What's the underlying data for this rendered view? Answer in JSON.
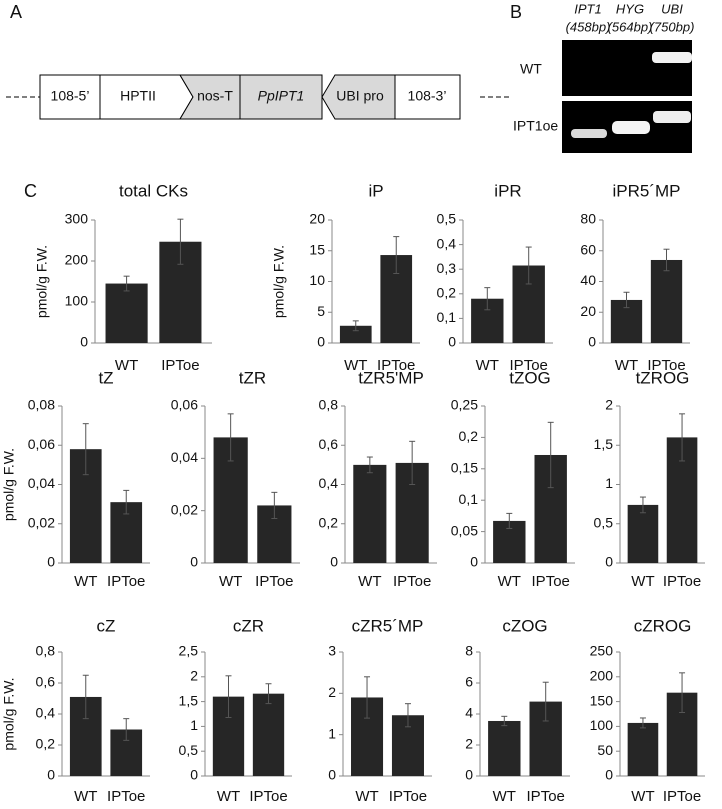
{
  "panel_a": {
    "label": "A",
    "construct": [
      "108-5’",
      "HPTII",
      "nos-T",
      "PpIPT1",
      "UBI pro",
      "108-3’"
    ]
  },
  "panel_b": {
    "label": "B",
    "lanes": [
      {
        "gene": "IPT1",
        "size": "(458bp)"
      },
      {
        "gene": "HYG",
        "size": "(564bp)"
      },
      {
        "gene": "UBI",
        "size": "(750bp)"
      }
    ],
    "rows": [
      "WT",
      "IPT1oe"
    ]
  },
  "panel_c": {
    "label": "C"
  },
  "chart_data": [
    {
      "type": "bar",
      "title": "total CKs",
      "ylabel": "pmol/g F.W.",
      "categories": [
        "WT",
        "IPToe"
      ],
      "values": [
        145,
        247
      ],
      "errors": [
        18,
        55
      ],
      "color": "#262626",
      "ylim": [
        0,
        300
      ],
      "yticks": [
        0,
        100,
        200,
        300
      ]
    },
    {
      "type": "bar",
      "title": "iP",
      "ylabel": "pmol/g F.W.",
      "categories": [
        "WT",
        "IPToe"
      ],
      "values": [
        2.8,
        14.3
      ],
      "errors": [
        0.8,
        3
      ],
      "color": "#262626",
      "ylim": [
        0,
        20
      ],
      "yticks": [
        0,
        5,
        10,
        15,
        20
      ]
    },
    {
      "type": "bar",
      "title": "iPR",
      "categories": [
        "WT",
        "IPToe"
      ],
      "values": [
        0.18,
        0.315
      ],
      "errors": [
        0.045,
        0.075
      ],
      "color": "#262626",
      "ylim": [
        0,
        0.5
      ],
      "yticks": [
        0,
        {
          "value": 0.1,
          "label": "0,1"
        },
        {
          "value": 0.2,
          "label": "0,2"
        },
        {
          "value": 0.3,
          "label": "0,3"
        },
        {
          "value": 0.4,
          "label": "0,4"
        },
        {
          "value": 0.5,
          "label": "0,5"
        }
      ]
    },
    {
      "type": "bar",
      "title": "iPR5´MP",
      "categories": [
        "WT",
        "IPToe"
      ],
      "values": [
        28,
        54
      ],
      "errors": [
        5,
        7
      ],
      "color": "#262626",
      "ylim": [
        0,
        80
      ],
      "yticks": [
        0,
        20,
        40,
        60,
        80
      ]
    },
    {
      "type": "bar",
      "title": "tZ",
      "ylabel": "pmol/g F.W.",
      "categories": [
        "WT",
        "IPToe"
      ],
      "values": [
        0.058,
        0.031
      ],
      "errors": [
        0.013,
        0.006
      ],
      "color": "#262626",
      "ylim": [
        0,
        0.08
      ],
      "yticks": [
        0,
        {
          "value": 0.02,
          "label": "0,02"
        },
        {
          "value": 0.04,
          "label": "0,04"
        },
        {
          "value": 0.06,
          "label": "0,06"
        },
        {
          "value": 0.08,
          "label": "0,08"
        }
      ]
    },
    {
      "type": "bar",
      "title": "tZR",
      "categories": [
        "WT",
        "IPToe"
      ],
      "values": [
        0.048,
        0.022
      ],
      "errors": [
        0.009,
        0.005
      ],
      "color": "#262626",
      "ylim": [
        0,
        0.06
      ],
      "yticks": [
        0,
        {
          "value": 0.02,
          "label": "0,02"
        },
        {
          "value": 0.04,
          "label": "0,04"
        },
        {
          "value": 0.06,
          "label": "0,06"
        }
      ]
    },
    {
      "type": "bar",
      "title": "tZR5'MP",
      "categories": [
        "WT",
        "IPToe"
      ],
      "values": [
        0.5,
        0.51
      ],
      "errors": [
        0.04,
        0.11
      ],
      "color": "#262626",
      "ylim": [
        0,
        0.8
      ],
      "yticks": [
        0,
        {
          "value": 0.2,
          "label": "0,2"
        },
        {
          "value": 0.4,
          "label": "0,4"
        },
        {
          "value": 0.6,
          "label": "0,6"
        },
        {
          "value": 0.8,
          "label": "0,8"
        }
      ]
    },
    {
      "type": "bar",
      "title": "tZOG",
      "categories": [
        "WT",
        "IPToe"
      ],
      "values": [
        0.067,
        0.172
      ],
      "errors": [
        0.012,
        0.052
      ],
      "color": "#262626",
      "ylim": [
        0,
        0.25
      ],
      "yticks": [
        0,
        {
          "value": 0.05,
          "label": "0,05"
        },
        {
          "value": 0.1,
          "label": "0,1"
        },
        {
          "value": 0.15,
          "label": "0,15"
        },
        {
          "value": 0.2,
          "label": "0,2"
        },
        {
          "value": 0.25,
          "label": "0,25"
        }
      ]
    },
    {
      "type": "bar",
      "title": "tZROG",
      "categories": [
        "WT",
        "IPToe"
      ],
      "values": [
        0.74,
        1.6
      ],
      "errors": [
        0.1,
        0.3
      ],
      "color": "#262626",
      "ylim": [
        0,
        2
      ],
      "yticks": [
        0,
        {
          "value": 0.5,
          "label": "0,5"
        },
        1,
        {
          "value": 1.5,
          "label": "1,5"
        },
        2
      ]
    },
    {
      "type": "bar",
      "title": "cZ",
      "ylabel": "pmol/g F.W.",
      "categories": [
        "WT",
        "IPToe"
      ],
      "values": [
        0.51,
        0.3
      ],
      "errors": [
        0.14,
        0.07
      ],
      "color": "#262626",
      "ylim": [
        0,
        0.8
      ],
      "yticks": [
        0,
        {
          "value": 0.2,
          "label": "0,2"
        },
        {
          "value": 0.4,
          "label": "0,4"
        },
        {
          "value": 0.6,
          "label": "0,6"
        },
        {
          "value": 0.8,
          "label": "0,8"
        }
      ]
    },
    {
      "type": "bar",
      "title": "cZR",
      "categories": [
        "WT",
        "IPToe"
      ],
      "values": [
        1.6,
        1.66
      ],
      "errors": [
        0.42,
        0.2
      ],
      "color": "#262626",
      "ylim": [
        0,
        2.5
      ],
      "yticks": [
        0,
        {
          "value": 0.5,
          "label": "0,5"
        },
        1,
        {
          "value": 1.5,
          "label": "1,5"
        },
        2,
        {
          "value": 2.5,
          "label": "2,5"
        }
      ]
    },
    {
      "type": "bar",
      "title": "cZR5´MP",
      "categories": [
        "WT",
        "IPToe"
      ],
      "values": [
        1.9,
        1.47
      ],
      "errors": [
        0.5,
        0.28
      ],
      "color": "#262626",
      "ylim": [
        0,
        3
      ],
      "yticks": [
        0,
        1,
        2,
        3
      ]
    },
    {
      "type": "bar",
      "title": "cZOG",
      "categories": [
        "WT",
        "IPToe"
      ],
      "values": [
        3.55,
        4.8
      ],
      "errors": [
        0.3,
        1.25
      ],
      "color": "#262626",
      "ylim": [
        0,
        8
      ],
      "yticks": [
        0,
        2,
        4,
        6,
        8
      ]
    },
    {
      "type": "bar",
      "title": "cZROG",
      "categories": [
        "WT",
        "IPToe"
      ],
      "values": [
        107,
        168
      ],
      "errors": [
        10,
        40
      ],
      "color": "#262626",
      "ylim": [
        0,
        250
      ],
      "yticks": [
        0,
        50,
        100,
        150,
        200,
        250
      ]
    }
  ]
}
